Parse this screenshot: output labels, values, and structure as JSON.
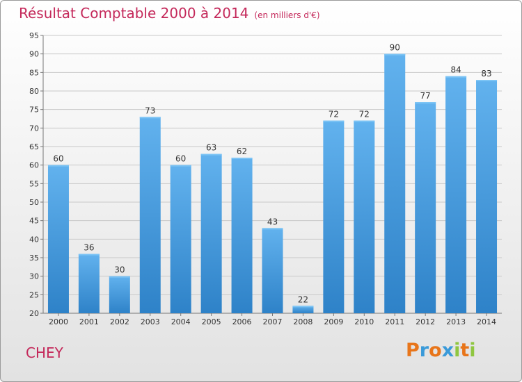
{
  "header": {
    "title": "Résultat Comptable 2000 à 2014",
    "subtitle": "(en milliers d'€)"
  },
  "footer": {
    "commune": "CHEY",
    "logo_text": "Proxiti",
    "logo_letters": [
      {
        "ch": "P",
        "color": "#e8751a"
      },
      {
        "ch": "r",
        "color": "#3a9ad9"
      },
      {
        "ch": "o",
        "color": "#e8751a"
      },
      {
        "ch": "x",
        "color": "#3a9ad9"
      },
      {
        "ch": "i",
        "color": "#8fc640"
      },
      {
        "ch": "t",
        "color": "#e8751a"
      },
      {
        "ch": "i",
        "color": "#8fc640"
      }
    ]
  },
  "colors": {
    "bar_top": "#62b2ee",
    "bar_bottom": "#2e82c8",
    "grid": "#c8c8c8",
    "title": "#c4285a"
  },
  "chart_data": {
    "type": "bar",
    "title": "Résultat Comptable 2000 à 2014",
    "subtitle": "(en milliers d'€)",
    "categories": [
      "2000",
      "2001",
      "2002",
      "2003",
      "2004",
      "2005",
      "2006",
      "2007",
      "2008",
      "2009",
      "2010",
      "2011",
      "2012",
      "2013",
      "2014"
    ],
    "values": [
      60,
      36,
      30,
      73,
      60,
      63,
      62,
      43,
      22,
      72,
      72,
      90,
      77,
      84,
      83
    ],
    "ylim": [
      20,
      95
    ],
    "yticks": [
      20,
      25,
      30,
      35,
      40,
      45,
      50,
      55,
      60,
      65,
      70,
      75,
      80,
      85,
      90,
      95
    ],
    "grid": true,
    "data_labels": true
  }
}
